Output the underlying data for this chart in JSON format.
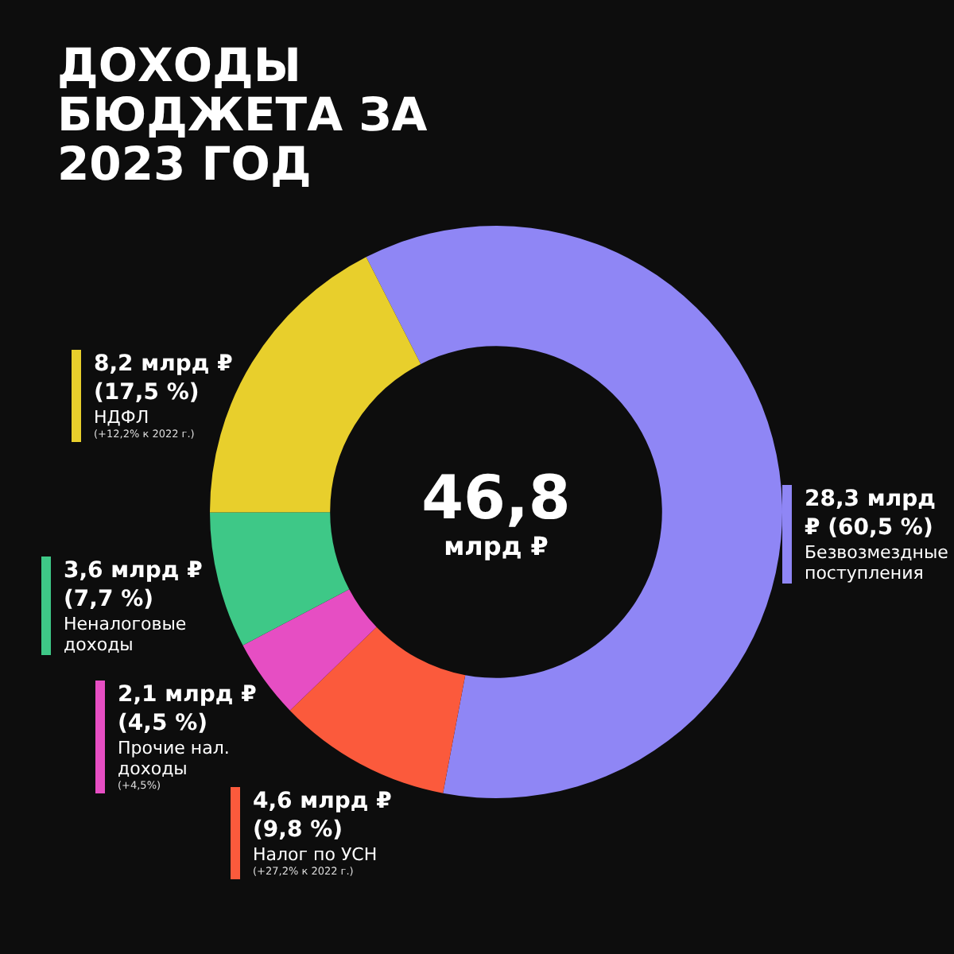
{
  "chart_data": {
    "type": "donut",
    "title": "ДОХОДЫ БЮДЖЕТА ЗА 2023 ГОД",
    "categories": [
      "Безвозмездные поступления",
      "Налог по УСН",
      "Прочие нал. доходы",
      "Неналоговые доходы",
      "НДФЛ"
    ],
    "values": [
      28.3,
      4.6,
      2.1,
      3.6,
      8.2
    ],
    "colors": [
      "#8f86f5",
      "#fb5a3c",
      "#e64ec3",
      "#3ec887",
      "#e8cf2c"
    ],
    "value_labels": [
      "28,3 млрд ₽ (60,5 %)",
      "4,6 млрд ₽ (9,8 %)",
      "2,1 млрд ₽ (4,5 %)",
      "3,6 млрд ₽ (7,7 %)",
      "8,2 млрд ₽ (17,5 %)"
    ],
    "annotations": [
      "46,8 млрд ₽",
      "(+12,2% к 2022 г.)",
      "(+4,5%)",
      "(+27,2% к 2022 г.)"
    ],
    "legend": false
  }
}
